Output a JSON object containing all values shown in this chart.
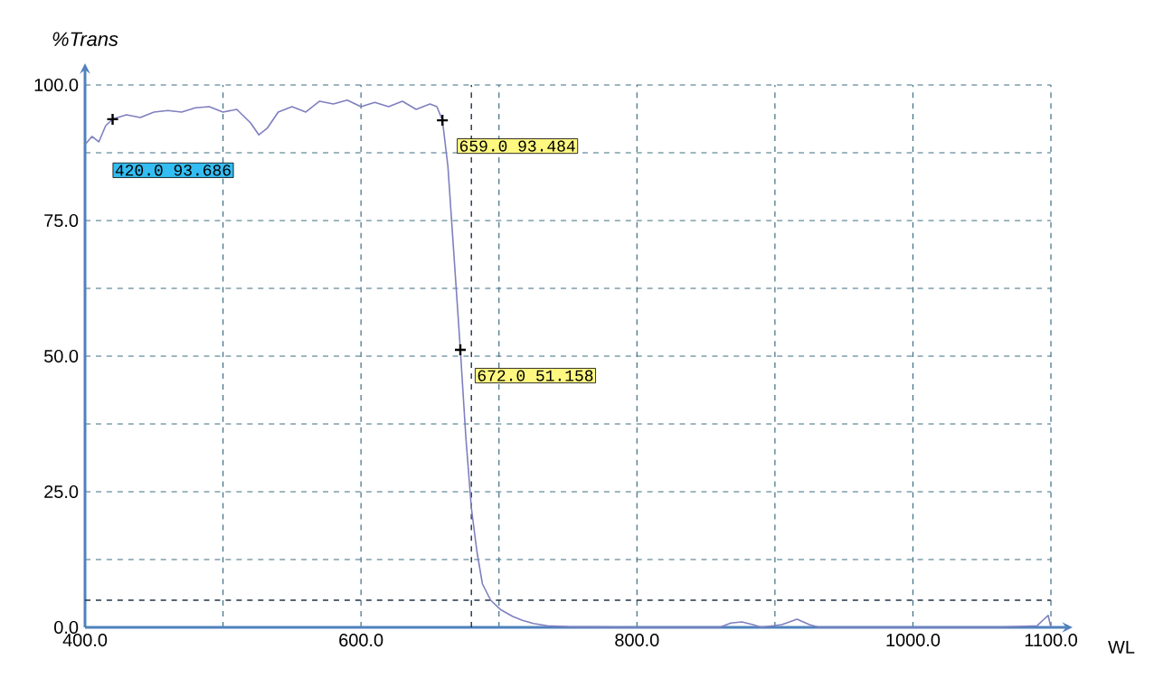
{
  "chart_data": {
    "type": "line",
    "xlabel": "WL",
    "ylabel": "%Trans",
    "color": "#7f7fbf",
    "x": [
      400,
      405,
      410,
      415,
      420,
      430,
      440,
      450,
      460,
      470,
      480,
      490,
      500,
      510,
      520,
      526,
      532,
      540,
      550,
      560,
      570,
      580,
      590,
      600,
      610,
      620,
      630,
      640,
      650,
      655,
      659,
      663,
      667,
      672,
      676,
      680,
      684,
      688,
      694,
      701,
      710,
      717,
      725,
      735,
      750,
      800,
      860,
      868,
      876,
      884,
      890,
      905,
      916,
      925,
      932,
      1060,
      1090,
      1095,
      1098,
      1100
    ],
    "values": [
      89,
      90.5,
      89.5,
      92.5,
      93.7,
      94.5,
      94,
      95,
      95.3,
      95,
      95.8,
      96,
      95,
      95.5,
      93,
      90.8,
      92,
      95,
      96,
      95,
      97,
      96.5,
      97.2,
      96,
      96.8,
      96,
      97,
      95.5,
      96.5,
      96,
      93.5,
      85,
      70,
      51.2,
      35,
      22,
      14,
      8,
      5,
      3.3,
      2,
      1.3,
      0.7,
      0.3,
      0.1,
      0,
      0,
      0.8,
      1,
      0.5,
      0,
      0.5,
      1.5,
      0.5,
      0,
      0,
      0.3,
      1.5,
      2.2,
      0
    ],
    "xlim": [
      400,
      1100
    ],
    "ylim": [
      0,
      100
    ],
    "xticks": [
      {
        "value": 400,
        "label": "400.0"
      },
      {
        "value": 500,
        "label": null
      },
      {
        "value": 600,
        "label": "600.0"
      },
      {
        "value": 700,
        "label": null
      },
      {
        "value": 800,
        "label": "800.0"
      },
      {
        "value": 900,
        "label": null
      },
      {
        "value": 1000,
        "label": "1000.0"
      },
      {
        "value": 1100,
        "label": "1100.0"
      }
    ],
    "yticks": [
      {
        "value": 0,
        "label": "0.0"
      },
      {
        "value": 12.5,
        "label": null
      },
      {
        "value": 25,
        "label": "25.0"
      },
      {
        "value": 37.5,
        "label": null
      },
      {
        "value": 50,
        "label": "50.0"
      },
      {
        "value": 62.5,
        "label": null
      },
      {
        "value": 75,
        "label": "75.0"
      },
      {
        "value": 87.5,
        "label": null
      },
      {
        "value": 100,
        "label": "100.0"
      }
    ],
    "grid": true,
    "line_style": "solid",
    "marker": "none",
    "ref_lines": [
      {
        "axis": "x",
        "value": 680,
        "color": "#1f3347",
        "line_style": "dashed"
      },
      {
        "axis": "y",
        "value": 5,
        "color": "#1f3347",
        "line_style": "dashed"
      }
    ],
    "annotations": [
      {
        "text": "420.0 93.686",
        "x": 420,
        "y": 93.686
      },
      {
        "text": "659.0 93.484",
        "x": 659,
        "y": 93.484
      },
      {
        "text": "672.0 51.158",
        "x": 672,
        "y": 51.158
      }
    ]
  }
}
